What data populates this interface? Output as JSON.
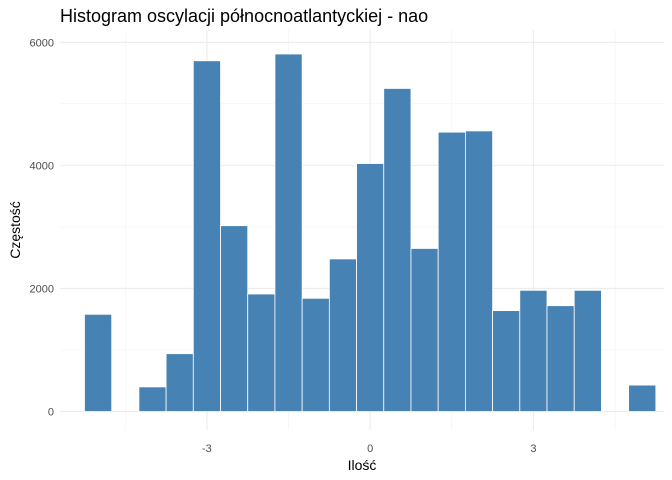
{
  "chart_data": {
    "type": "bar",
    "title": "Histogram oscylacji północnoatlantyckiej - nao",
    "xlabel": "Ilość",
    "ylabel": "Częstość",
    "x_ticks": [
      -3,
      0,
      3
    ],
    "y_ticks": [
      0,
      2000,
      4000,
      6000
    ],
    "xlim": [
      -5.7,
      5.4
    ],
    "ylim": [
      -300,
      6200
    ],
    "bin_width": 0.5,
    "bin_centers": [
      -5.0,
      -4.0,
      -3.5,
      -3.0,
      -2.5,
      -2.0,
      -1.5,
      -1.0,
      -0.5,
      0.0,
      0.5,
      1.0,
      1.5,
      2.0,
      2.5,
      3.0,
      3.5,
      4.0,
      5.0
    ],
    "values": [
      1580,
      400,
      940,
      5700,
      3020,
      1910,
      5810,
      1840,
      2480,
      4030,
      5250,
      2650,
      4540,
      4560,
      1640,
      1970,
      1720,
      1970,
      430
    ],
    "bar_color": "#4682B4",
    "grid": true
  }
}
